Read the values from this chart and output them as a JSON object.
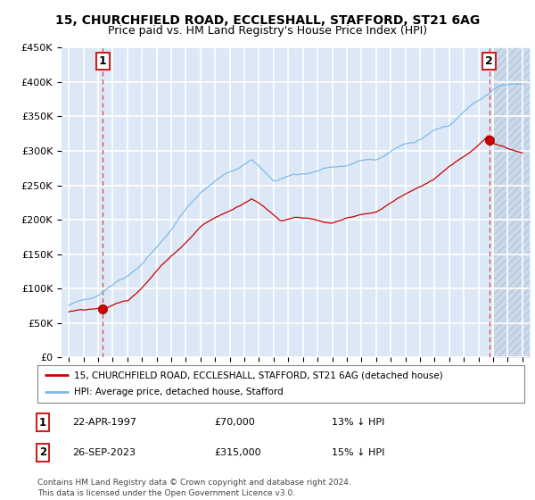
{
  "title": "15, CHURCHFIELD ROAD, ECCLESHALL, STAFFORD, ST21 6AG",
  "subtitle": "Price paid vs. HM Land Registry's House Price Index (HPI)",
  "ylim": [
    0,
    450000
  ],
  "yticks": [
    0,
    50000,
    100000,
    150000,
    200000,
    250000,
    300000,
    350000,
    400000,
    450000
  ],
  "ytick_labels": [
    "£0",
    "£50K",
    "£100K",
    "£150K",
    "£200K",
    "£250K",
    "£300K",
    "£350K",
    "£400K",
    "£450K"
  ],
  "x_start_year": 1995,
  "x_end_year": 2026,
  "sale1_date": 1997.31,
  "sale1_price": 70000,
  "sale2_date": 2023.73,
  "sale2_price": 315000,
  "hpi_line_color": "#7ab8e8",
  "price_line_color": "#cc0000",
  "sale_dot_color": "#cc0000",
  "dashed_line_color": "#dd4444",
  "plot_bg_color": "#dce8f5",
  "grid_color": "#ffffff",
  "hatch_color": "#c0ccd8",
  "legend_label1": "15, CHURCHFIELD ROAD, ECCLESHALL, STAFFORD, ST21 6AG (detached house)",
  "legend_label2": "HPI: Average price, detached house, Stafford",
  "footer": "Contains HM Land Registry data © Crown copyright and database right 2024.\nThis data is licensed under the Open Government Licence v3.0.",
  "title_fontsize": 10.0,
  "subtitle_fontsize": 9.0
}
